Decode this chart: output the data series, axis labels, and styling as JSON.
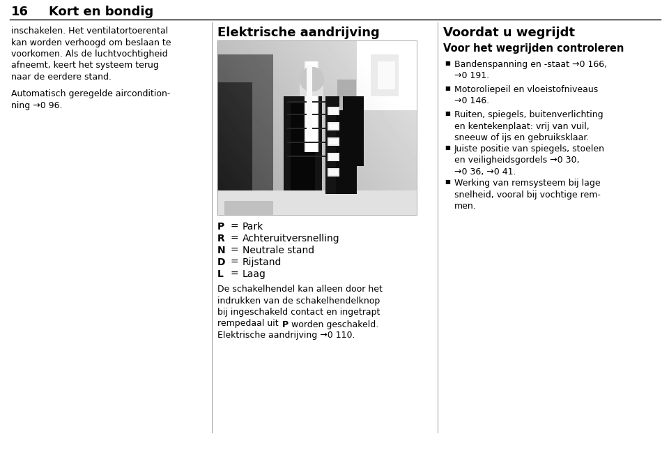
{
  "background_color": "#ffffff",
  "page_width": 9.6,
  "page_height": 6.55,
  "header_number": "16",
  "header_title": "Kort en bondig",
  "col1_para1": "inschakelen. Het ventilatortoerental\nkan worden verhoogd om beslaan te\nvoorkomen. Als de luchtvochtigheid\nafneemt, keert het systeem terug\nnaar de eerdere stand.",
  "col1_para2": "Automatisch geregelde aircondition‑\nning →0 96.",
  "col2_title": "Elektrische aandrijving",
  "col2_legend": [
    {
      "letter": "P",
      "text": "Park"
    },
    {
      "letter": "R",
      "text": "Achteruitversnelling"
    },
    {
      "letter": "N",
      "text": "Neutrale stand"
    },
    {
      "letter": "D",
      "text": "Rijstand"
    },
    {
      "letter": "L",
      "text": "Laag"
    }
  ],
  "col2_para1_line1": "De schakelhendel kan alleen door het",
  "col2_para1_line2": "indrukken van de schakelhendelknop",
  "col2_para1_line3": "bij ingeschakeld contact en ingetrapt",
  "col2_para1_line4": "rempedaal uit ",
  "col2_para1_bold": "P",
  "col2_para1_end": " worden geschakeld.",
  "col2_para2": "Elektrische aandrijving →0 110.",
  "col3_title": "Voordat u wegrijdt",
  "col3_subtitle": "Voor het wegrijden controleren",
  "col3_bullets": [
    "Bandenspanning en -staat →0 166,\n→0 191.",
    "Motoroliepeil en vloeistofniveaus\n→0 146.",
    "Ruiten, spiegels, buitenverlichting\nen kentekenplaat: vrij van vuil,\nsneeuw of ijs en gebruiksklaar.",
    "Juiste positie van spiegels, stoelen\nen veiligheidsgordels →0 30,\n→0 36, →0 41.",
    "Werking van remsysteem bij lage\nsnelheid, vooral bij vochtige rem‑\nmen."
  ],
  "divider_color": "#000000",
  "col_divider_color": "#999999",
  "text_color": "#000000",
  "header_fontsize": 13,
  "body_fontsize": 9.0,
  "title_fontsize": 13,
  "subtitle_fontsize": 10.5,
  "legend_fontsize": 10.0
}
